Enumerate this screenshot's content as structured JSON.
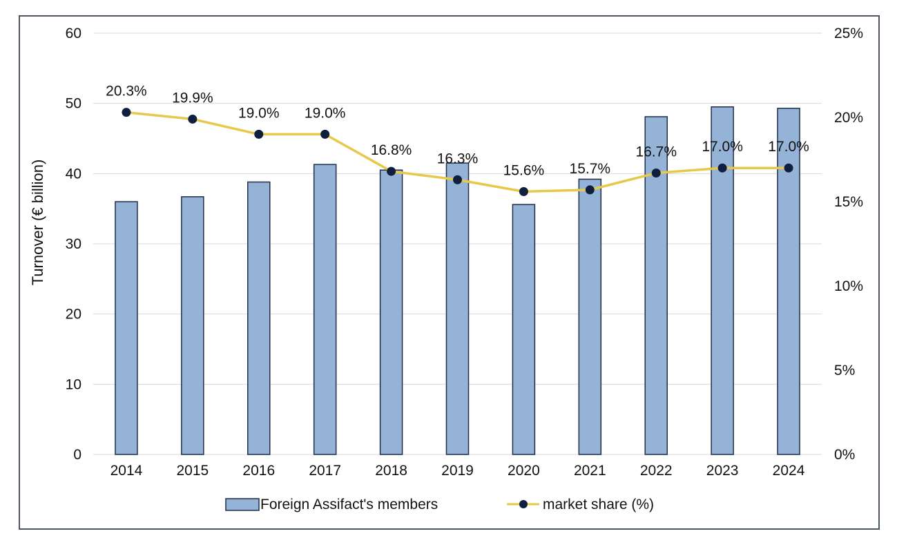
{
  "chart_data": {
    "type": "bar",
    "categories": [
      "2014",
      "2015",
      "2016",
      "2017",
      "2018",
      "2019",
      "2020",
      "2021",
      "2022",
      "2023",
      "2024"
    ],
    "title": "",
    "xlabel": "",
    "ylabel": "Turnover (€ billion)",
    "ylim": [
      0,
      60
    ],
    "y2lim": [
      0,
      25
    ],
    "y_ticks": [
      "0",
      "10",
      "20",
      "30",
      "40",
      "50",
      "60"
    ],
    "y2_ticks": [
      "0%",
      "5%",
      "10%",
      "15%",
      "20%",
      "25%"
    ],
    "grid": true,
    "legend_position": "bottom",
    "series": [
      {
        "name": "Foreign Assifact's members",
        "type": "bar",
        "axis": "left",
        "color": "#95b3d7",
        "edge_color": "#1f2d4a",
        "values": [
          36.0,
          36.7,
          38.8,
          41.3,
          40.5,
          41.5,
          35.6,
          39.2,
          48.1,
          49.5,
          49.3
        ]
      },
      {
        "name": "market share (%)",
        "type": "line",
        "axis": "right",
        "color": "#e8c84a",
        "marker_color": "#0f1f3d",
        "values": [
          20.3,
          19.9,
          19.0,
          19.0,
          16.8,
          16.3,
          15.6,
          15.7,
          16.7,
          17.0,
          17.0
        ],
        "labels": [
          "20.3%",
          "19.9%",
          "19.0%",
          "19.0%",
          "16.8%",
          "16.3%",
          "15.6%",
          "15.7%",
          "16.7%",
          "17.0%",
          "17.0%"
        ]
      }
    ]
  }
}
